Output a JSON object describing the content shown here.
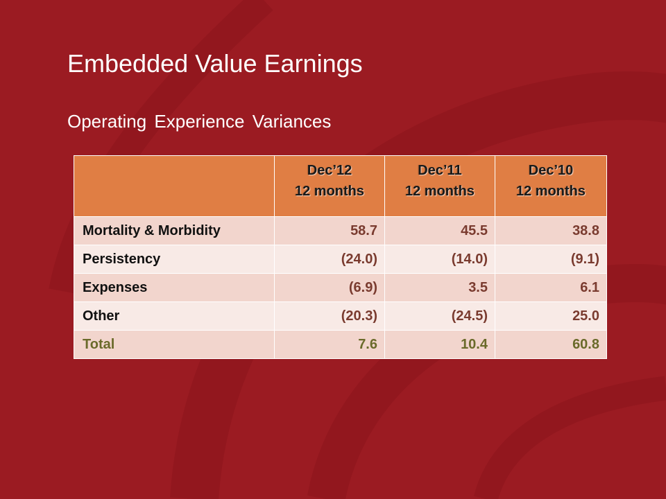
{
  "slide": {
    "title": "Embedded Value Earnings",
    "subtitle": "Operating Experience Variances"
  },
  "colors": {
    "background": "#9b1b22",
    "header_fill": "#e07e44",
    "row_fill_dark": "#f2d5cd",
    "row_fill_light": "#f8eae6",
    "value_text": "#7a3b2f",
    "total_text": "#6a6a2a"
  },
  "table": {
    "columns": [
      {
        "period": "Dec’12",
        "duration": "12 months"
      },
      {
        "period": "Dec’11",
        "duration": "12 months"
      },
      {
        "period": "Dec’10",
        "duration": "12 months"
      }
    ],
    "rows": [
      {
        "label": "Mortality & Morbidity",
        "values": [
          "58.7",
          "45.5",
          "38.8"
        ]
      },
      {
        "label": "Persistency",
        "values": [
          "(24.0)",
          "(14.0)",
          "(9.1)"
        ]
      },
      {
        "label": "Expenses",
        "values": [
          "(6.9)",
          "3.5",
          "6.1"
        ]
      },
      {
        "label": "Other",
        "values": [
          "(20.3)",
          "(24.5)",
          "25.0"
        ]
      },
      {
        "label": "Total",
        "values": [
          "7.6",
          "10.4",
          "60.8"
        ]
      }
    ]
  }
}
